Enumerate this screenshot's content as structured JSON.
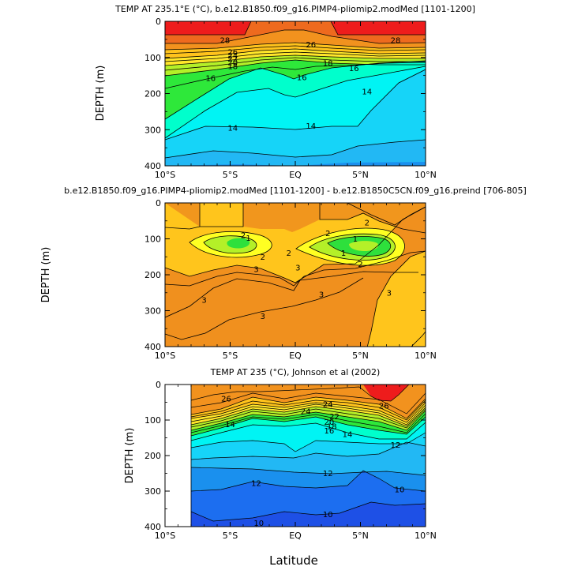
{
  "chart_data": [
    {
      "type": "heatmap",
      "subtype": "filled-contour",
      "title": "TEMP AT 235.1°E (°C), b.e12.B1850.f09_g16.PIMP4-pliomip2.modMed [1101-1200]",
      "xlabel": "",
      "ylabel": "DEPTH (m)",
      "xlim": [
        -10,
        10
      ],
      "ylim": [
        400,
        0
      ],
      "x_ticks": [
        -10,
        -5,
        0,
        5,
        10
      ],
      "x_tick_labels": [
        "10°S",
        "5°S",
        "EQ",
        "5°N",
        "10°N"
      ],
      "y_ticks": [
        0,
        100,
        200,
        300,
        400
      ],
      "y_tick_labels": [
        "0",
        "100",
        "200",
        "300",
        "400"
      ],
      "color_bands": [
        {
          "min": 27,
          "color": "#ee1c1c"
        },
        {
          "min": 26,
          "color": "#ee6a1e"
        },
        {
          "min": 24,
          "color": "#f2921e"
        },
        {
          "min": 22,
          "color": "#ffc31c"
        },
        {
          "min": 20,
          "color": "#ffe62a"
        },
        {
          "min": 18,
          "color": "#b4f028"
        },
        {
          "min": 16,
          "color": "#2ee83a"
        },
        {
          "min": 15,
          "color": "#00ffcc"
        },
        {
          "min": 14,
          "color": "#00f4f4"
        },
        {
          "min": 13,
          "color": "#16d4f8"
        },
        {
          "min": 12,
          "color": "#22b8f4"
        },
        {
          "min": -5,
          "color": "#1a90ee"
        }
      ],
      "isotherm_depths": [
        {
          "value": 28,
          "x": [
            -10,
            -4,
            -2,
            0,
            2,
            4,
            10
          ],
          "depth": [
            38,
            38,
            10,
            0,
            12,
            40,
            38
          ]
        },
        {
          "value": 26,
          "x": [
            -10,
            -5,
            -2,
            0,
            2,
            5,
            10
          ],
          "depth": [
            60,
            60,
            42,
            30,
            42,
            58,
            58
          ]
        },
        {
          "value": 24,
          "x": [
            -10,
            -5,
            -2,
            0,
            2,
            5,
            10
          ],
          "depth": [
            78,
            72,
            58,
            50,
            56,
            66,
            68
          ]
        },
        {
          "value": 22,
          "x": [
            -10,
            -5,
            -2,
            0,
            2,
            5,
            10
          ],
          "depth": [
            90,
            82,
            70,
            64,
            68,
            76,
            78
          ]
        },
        {
          "value": 20,
          "x": [
            -10,
            -5,
            -2,
            0,
            2,
            5,
            10
          ],
          "depth": [
            102,
            94,
            82,
            78,
            80,
            88,
            88
          ]
        },
        {
          "value": 18,
          "x": [
            -10,
            -5,
            -2,
            0,
            2,
            5,
            10
          ],
          "depth": [
            130,
            112,
            98,
            96,
            96,
            102,
            102
          ]
        },
        {
          "value": 16,
          "x": [
            -10,
            -6,
            -3,
            -1,
            0,
            1,
            3,
            6,
            10
          ],
          "depth": [
            200,
            150,
            120,
            135,
            160,
            135,
            118,
            115,
            110
          ]
        },
        {
          "value": 15,
          "x": [
            -10,
            -6,
            -3,
            -1,
            0,
            1,
            3,
            6,
            8,
            10
          ],
          "depth": [
            240,
            210,
            175,
            180,
            210,
            195,
            180,
            165,
            140,
            125
          ]
        },
        {
          "value": 14,
          "x": [
            -10,
            -6,
            -3,
            0,
            3,
            5,
            6,
            8,
            10
          ],
          "depth": [
            330,
            285,
            292,
            300,
            292,
            292,
            260,
            170,
            135
          ]
        },
        {
          "value": 13,
          "x": [
            -10,
            -6,
            -2,
            0,
            2,
            4,
            6,
            8,
            10
          ],
          "depth": [
            378,
            358,
            368,
            378,
            372,
            346,
            334,
            318,
            308
          ]
        }
      ],
      "contour_labels": [
        {
          "text": "28",
          "x": -5.4,
          "depth": 52
        },
        {
          "text": "28",
          "x": 7.7,
          "depth": 52
        },
        {
          "text": "26",
          "x": -4.8,
          "depth": 85
        },
        {
          "text": "26",
          "x": 1.2,
          "depth": 65
        },
        {
          "text": "24",
          "x": -4.8,
          "depth": 95
        },
        {
          "text": "22",
          "x": -4.8,
          "depth": 104
        },
        {
          "text": "20",
          "x": -4.8,
          "depth": 114
        },
        {
          "text": "18",
          "x": -4.8,
          "depth": 125
        },
        {
          "text": "18",
          "x": 2.5,
          "depth": 116
        },
        {
          "text": "16",
          "x": -6.5,
          "depth": 157
        },
        {
          "text": "16",
          "x": 0.5,
          "depth": 155
        },
        {
          "text": "16",
          "x": 4.5,
          "depth": 130
        },
        {
          "text": "14",
          "x": -4.8,
          "depth": 295
        },
        {
          "text": "14",
          "x": 1.2,
          "depth": 290
        },
        {
          "text": "14",
          "x": 5.5,
          "depth": 195
        }
      ]
    },
    {
      "type": "heatmap",
      "subtype": "filled-contour",
      "title": "b.e12.B1850.f09_g16.PIMP4-pliomip2.modMed [1101-1200] - b.e12.B1850C5CN.f09_g16.preind [706-805]",
      "xlabel": "",
      "ylabel": "DEPTH (m)",
      "xlim": [
        -10,
        10
      ],
      "ylim": [
        400,
        0
      ],
      "x_ticks": [
        -10,
        -5,
        0,
        5,
        10
      ],
      "x_tick_labels": [
        "10°S",
        "5°S",
        "EQ",
        "5°N",
        "10°N"
      ],
      "y_ticks": [
        0,
        100,
        200,
        300,
        400
      ],
      "y_tick_labels": [
        "0",
        "100",
        "200",
        "300",
        "400"
      ],
      "color_bands": [
        {
          "min": 3,
          "color": "#f0901e"
        },
        {
          "min": 2,
          "color": "#ffc51c"
        },
        {
          "min": 1.5,
          "color": "#ffff22"
        },
        {
          "min": 1,
          "color": "#b4f028"
        },
        {
          "min": 0,
          "color": "#2ee03c"
        }
      ],
      "contour_labels": [
        {
          "text": "2",
          "x": -4,
          "depth": 90
        },
        {
          "text": "2",
          "x": 5.5,
          "depth": 55
        },
        {
          "text": "2",
          "x": 2.5,
          "depth": 85
        },
        {
          "text": "1",
          "x": -3.6,
          "depth": 98
        },
        {
          "text": "1",
          "x": 4.6,
          "depth": 100
        },
        {
          "text": "1",
          "x": 3.7,
          "depth": 140
        },
        {
          "text": "2",
          "x": -2.5,
          "depth": 150
        },
        {
          "text": "2",
          "x": -0.5,
          "depth": 140
        },
        {
          "text": "2",
          "x": 5,
          "depth": 170
        },
        {
          "text": "3",
          "x": -3,
          "depth": 185
        },
        {
          "text": "3",
          "x": 0.2,
          "depth": 180
        },
        {
          "text": "3",
          "x": -7,
          "depth": 270
        },
        {
          "text": "3",
          "x": 2,
          "depth": 255
        },
        {
          "text": "3",
          "x": -2.5,
          "depth": 315
        },
        {
          "text": "3",
          "x": 7.2,
          "depth": 250
        }
      ]
    },
    {
      "type": "heatmap",
      "subtype": "filled-contour",
      "title": "TEMP AT 235 (°C), Johnson et al (2002)",
      "xlabel": "Latitude",
      "ylabel": "DEPTH (m)",
      "xlim": [
        -10,
        10
      ],
      "ylim": [
        400,
        0
      ],
      "data_xlim": [
        -8,
        10
      ],
      "x_ticks": [
        -10,
        -5,
        0,
        5,
        10
      ],
      "x_tick_labels": [
        "10°S",
        "5°S",
        "EQ",
        "5°N",
        "10°N"
      ],
      "y_ticks": [
        0,
        100,
        200,
        300,
        400
      ],
      "y_tick_labels": [
        "0",
        "100",
        "200",
        "300",
        "400"
      ],
      "color_bands": [
        {
          "min": 27,
          "color": "#ee1c1c"
        },
        {
          "min": 26,
          "color": "#ee6a1e"
        },
        {
          "min": 24,
          "color": "#f2921e"
        },
        {
          "min": 22,
          "color": "#ffc31c"
        },
        {
          "min": 20,
          "color": "#ffe62a"
        },
        {
          "min": 18,
          "color": "#b4f028"
        },
        {
          "min": 16,
          "color": "#2ee83a"
        },
        {
          "min": 15,
          "color": "#00ffcc"
        },
        {
          "min": 14,
          "color": "#00f4f4"
        },
        {
          "min": 13,
          "color": "#16d4f8"
        },
        {
          "min": 12,
          "color": "#22b8f4"
        },
        {
          "min": 11,
          "color": "#1a90ee"
        },
        {
          "min": 10,
          "color": "#1c6ef0"
        },
        {
          "min": -5,
          "color": "#1e50e6"
        }
      ],
      "contour_labels": [
        {
          "text": "26",
          "x": -5.3,
          "depth": 40
        },
        {
          "text": "26",
          "x": 6.8,
          "depth": 60
        },
        {
          "text": "24",
          "x": 0.8,
          "depth": 75
        },
        {
          "text": "24",
          "x": 2.5,
          "depth": 55
        },
        {
          "text": "22",
          "x": 3,
          "depth": 90
        },
        {
          "text": "20",
          "x": 2.6,
          "depth": 105
        },
        {
          "text": "18",
          "x": 2.8,
          "depth": 118
        },
        {
          "text": "16",
          "x": 2.6,
          "depth": 130
        },
        {
          "text": "14",
          "x": -5,
          "depth": 112
        },
        {
          "text": "14",
          "x": 4,
          "depth": 140
        },
        {
          "text": "12",
          "x": 7.7,
          "depth": 170
        },
        {
          "text": "12",
          "x": 2.5,
          "depth": 250
        },
        {
          "text": "12",
          "x": -3,
          "depth": 278
        },
        {
          "text": "10",
          "x": 8,
          "depth": 295
        },
        {
          "text": "10",
          "x": 2.5,
          "depth": 365
        },
        {
          "text": "10",
          "x": -2.8,
          "depth": 390
        }
      ]
    }
  ]
}
